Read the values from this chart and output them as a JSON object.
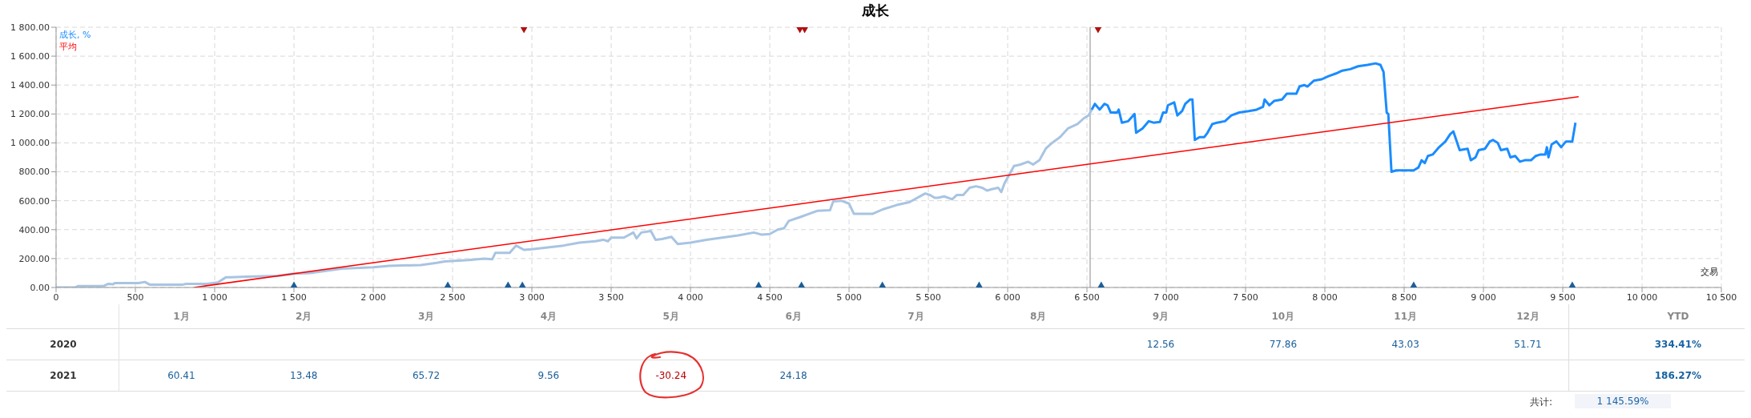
{
  "chart_data": [
    {
      "type": "line",
      "title": "成长",
      "xlabel": "交易",
      "xlim": [
        0,
        10500
      ],
      "ylim": [
        0,
        1800
      ],
      "grid": true,
      "legend": "top left",
      "line_style": "solid",
      "xticks": [
        0,
        500,
        {
          "value": 1000,
          "label": "1 000"
        },
        {
          "value": 1500,
          "label": "1 500"
        },
        {
          "value": 2000,
          "label": "2 000"
        },
        {
          "value": 2500,
          "label": "2 500"
        },
        {
          "value": 3000,
          "label": "3 000"
        },
        {
          "value": 3500,
          "label": "3 500"
        },
        {
          "value": 4000,
          "label": "4 000"
        },
        {
          "value": 4500,
          "label": "4 500"
        },
        {
          "value": 5000,
          "label": "5 000"
        },
        {
          "value": 5500,
          "label": "5 500"
        },
        {
          "value": 6000,
          "label": "6 000"
        },
        {
          "value": 6500,
          "label": "6 500"
        },
        {
          "value": 7000,
          "label": "7 000"
        },
        {
          "value": 7500,
          "label": "7 500"
        },
        {
          "value": 8000,
          "label": "8 000"
        },
        {
          "value": 8500,
          "label": "8 500"
        },
        {
          "value": 9000,
          "label": "9 000"
        },
        {
          "value": 9500,
          "label": "9 500"
        },
        {
          "value": 10000,
          "label": "10 000"
        },
        {
          "value": 10500,
          "label": "10 500"
        }
      ],
      "yticks": [
        {
          "value": 0,
          "label": "0.00"
        },
        {
          "value": 200,
          "label": "200.00"
        },
        {
          "value": 400,
          "label": "400.00"
        },
        {
          "value": 600,
          "label": "600.00"
        },
        {
          "value": 800,
          "label": "800.00"
        },
        {
          "value": 1000,
          "label": "1 000.00"
        },
        {
          "value": 1200,
          "label": "1 200.00"
        },
        {
          "value": 1400,
          "label": "1 400.00"
        },
        {
          "value": 1600,
          "label": "1 600.00"
        },
        {
          "value": 1800,
          "label": "1 800.00"
        }
      ],
      "ref_lines": [
        {
          "axis": "x",
          "value": 6520,
          "color": "#b0b0b0"
        }
      ],
      "series": [
        {
          "type": "line",
          "color": "#a8c4e2",
          "x": [
            0,
            120,
            140,
            300,
            330,
            360,
            370,
            520,
            560,
            590,
            800,
            820,
            950,
            1020,
            1070,
            1100,
            1200,
            1400,
            1500,
            1600,
            1800,
            2000,
            2100,
            2300,
            2400,
            2450,
            2600,
            2700,
            2750,
            2770,
            2860,
            2900,
            2950,
            3000,
            3200,
            3300,
            3400,
            3450,
            3480,
            3500,
            3580,
            3640,
            3660,
            3690,
            3750,
            3780,
            3820,
            3880,
            3920,
            4000,
            4100,
            4300,
            4400,
            4450,
            4500,
            4550,
            4590,
            4620,
            4700,
            4750,
            4800,
            4880,
            4900,
            4950,
            5000,
            5030,
            5150,
            5212,
            5300,
            5380,
            5480,
            5510,
            5540,
            5560,
            5600,
            5650,
            5680,
            5720,
            5760,
            5800,
            5840,
            5870,
            5900,
            5940,
            5960,
            5980,
            6040,
            6080,
            6130,
            6160,
            6200,
            6240,
            6280,
            6330,
            6380,
            6440,
            6480,
            6510,
            6530
          ],
          "values": [
            0,
            0,
            10,
            10,
            25,
            22,
            30,
            30,
            38,
            20,
            20,
            25,
            25,
            35,
            70,
            70,
            75,
            80,
            95,
            100,
            130,
            140,
            150,
            155,
            170,
            180,
            190,
            200,
            195,
            240,
            240,
            290,
            260,
            265,
            290,
            310,
            320,
            330,
            320,
            345,
            345,
            380,
            340,
            380,
            390,
            330,
            335,
            350,
            300,
            310,
            330,
            360,
            380,
            365,
            370,
            400,
            410,
            460,
            490,
            510,
            530,
            535,
            595,
            600,
            580,
            510,
            510,
            540,
            570,
            590,
            650,
            640,
            620,
            620,
            630,
            610,
            640,
            640,
            690,
            700,
            690,
            670,
            680,
            690,
            660,
            720,
            840,
            850,
            870,
            850,
            880,
            960,
            1000,
            1040,
            1100,
            1130,
            1170,
            1190,
            1230
          ]
        },
        {
          "type": "line",
          "name": "成长, %",
          "color": "#1a8cff",
          "x": [
            6530,
            6550,
            6580,
            6610,
            6630,
            6650,
            6690,
            6700,
            6720,
            6760,
            6800,
            6810,
            6850,
            6890,
            6920,
            6960,
            6980,
            7000,
            7010,
            7050,
            7070,
            7100,
            7120,
            7150,
            7165,
            7180,
            7210,
            7240,
            7260,
            7290,
            7320,
            7370,
            7410,
            7460,
            7520,
            7570,
            7610,
            7620,
            7650,
            7680,
            7730,
            7760,
            7820,
            7840,
            7870,
            7890,
            7930,
            7980,
            8020,
            8070,
            8110,
            8160,
            8210,
            8270,
            8320,
            8350,
            8370,
            8390,
            8400,
            8420,
            8450,
            8560,
            8590,
            8610,
            8630,
            8650,
            8680,
            8720,
            8760,
            8790,
            8810,
            8850,
            8900,
            8920,
            8950,
            8970,
            9010,
            9040,
            9060,
            9090,
            9110,
            9150,
            9170,
            9200,
            9230,
            9260,
            9300,
            9330,
            9360,
            9390,
            9400,
            9410,
            9430,
            9460,
            9490,
            9520,
            9560,
            9580
          ],
          "values": [
            1230,
            1270,
            1230,
            1270,
            1260,
            1210,
            1210,
            1230,
            1140,
            1150,
            1200,
            1070,
            1100,
            1150,
            1140,
            1145,
            1210,
            1210,
            1260,
            1280,
            1190,
            1220,
            1270,
            1300,
            1300,
            1020,
            1040,
            1040,
            1070,
            1130,
            1140,
            1150,
            1190,
            1210,
            1220,
            1230,
            1250,
            1300,
            1260,
            1290,
            1300,
            1340,
            1340,
            1390,
            1400,
            1390,
            1430,
            1440,
            1460,
            1480,
            1500,
            1510,
            1530,
            1540,
            1550,
            1540,
            1490,
            1210,
            1200,
            800,
            810,
            810,
            830,
            880,
            860,
            910,
            920,
            970,
            1010,
            1060,
            1080,
            950,
            960,
            880,
            900,
            950,
            960,
            1010,
            1020,
            1000,
            950,
            960,
            900,
            910,
            870,
            880,
            880,
            910,
            920,
            920,
            970,
            900,
            990,
            1010,
            970,
            1010,
            1010,
            1140
          ]
        },
        {
          "type": "line",
          "name": "平均",
          "color": "#ff0000",
          "x": [
            870,
            9600
          ],
          "values": [
            0,
            1320
          ]
        },
        {
          "type": "scatter",
          "marker": "diamond",
          "color": "#b01010",
          "x": [
            2950,
            4690,
            4720,
            6570
          ],
          "values": [
            1800,
            1800,
            1800,
            1800
          ]
        },
        {
          "type": "scatter",
          "marker": "diamond",
          "color": "#1a5e9a",
          "x": [
            1500,
            2470,
            2850,
            2940,
            4430,
            4700,
            5210,
            5820,
            6590,
            8560,
            9560
          ],
          "values": [
            0,
            0,
            0,
            0,
            0,
            0,
            0,
            0,
            0,
            0,
            0
          ]
        }
      ]
    },
    {
      "type": "heatmap",
      "categories": [
        "1月",
        "2月",
        "3月",
        "4月",
        "5月",
        "6月",
        "7月",
        "8月",
        "9月",
        "10月",
        "11月",
        "12月",
        "YTD"
      ],
      "y_categories": [
        "2020",
        "2021"
      ],
      "cells": [
        [
          null,
          null,
          null,
          null,
          null,
          null,
          null,
          null,
          12.56,
          77.86,
          43.03,
          51.71,
          334.41
        ],
        [
          60.41,
          13.48,
          65.72,
          9.56,
          -30.24,
          24.18,
          null,
          null,
          null,
          null,
          null,
          null,
          186.27
        ]
      ],
      "cell_labels": [
        [
          null,
          null,
          null,
          null,
          null,
          null,
          null,
          null,
          "12.56",
          "77.86",
          "43.03",
          "51.71",
          "334.41%"
        ],
        [
          "60.41",
          "13.48",
          "65.72",
          "9.56",
          "-30.24",
          "24.18",
          null,
          null,
          null,
          null,
          null,
          null,
          "186.27%"
        ]
      ],
      "annotations": [
        "共计:",
        "1 145.59%"
      ]
    }
  ]
}
